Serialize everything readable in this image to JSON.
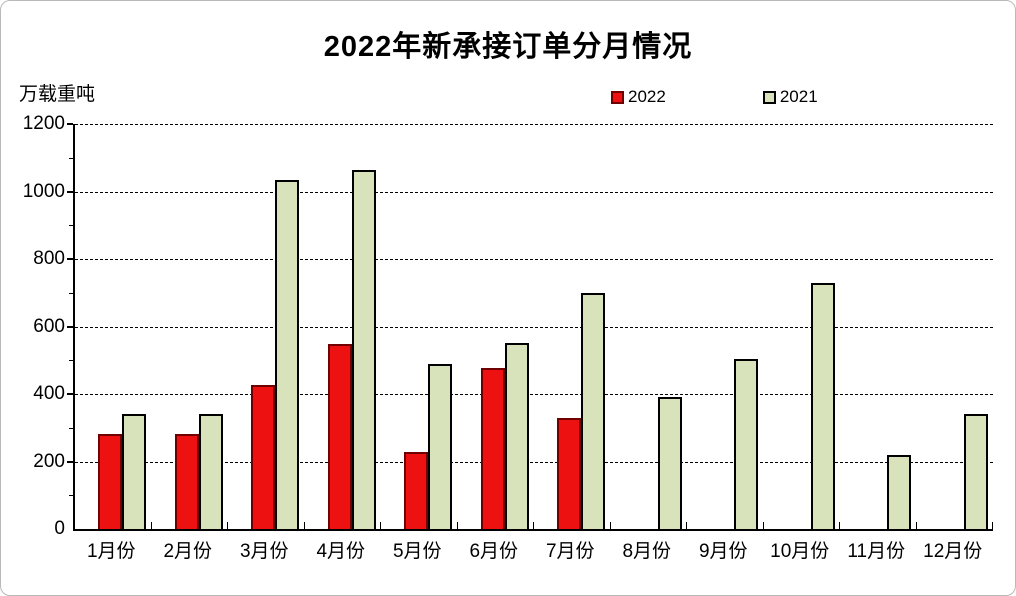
{
  "frame": {
    "background": "#ffffff",
    "border_color": "#b9b9b9"
  },
  "chart_data": {
    "type": "bar",
    "title": "2022年新承接订单分月情况",
    "ylabel": "万载重吨",
    "xlabel": "",
    "categories": [
      "1月份",
      "2月份",
      "3月份",
      "4月份",
      "5月份",
      "6月份",
      "7月份",
      "8月份",
      "9月份",
      "10月份",
      "11月份",
      "12月份"
    ],
    "series": [
      {
        "name": "2022",
        "fill": "#ee1111",
        "border": "#700000",
        "values": [
          282,
          283,
          428,
          548,
          228,
          476,
          328,
          null,
          null,
          null,
          null,
          null
        ]
      },
      {
        "name": "2021",
        "fill": "#d9e3bb",
        "border": "#000000",
        "values": [
          340,
          342,
          1035,
          1065,
          490,
          550,
          698,
          390,
          505,
          730,
          218,
          340
        ]
      }
    ],
    "ylim": [
      0,
      1200
    ],
    "yticks": [
      0,
      200,
      400,
      600,
      800,
      1000,
      1200
    ],
    "minor_tick_step": 100,
    "grid": "horizontal-dashed",
    "grid_color": "#000000",
    "legend_position": "top-center",
    "text_color": "#000000"
  }
}
